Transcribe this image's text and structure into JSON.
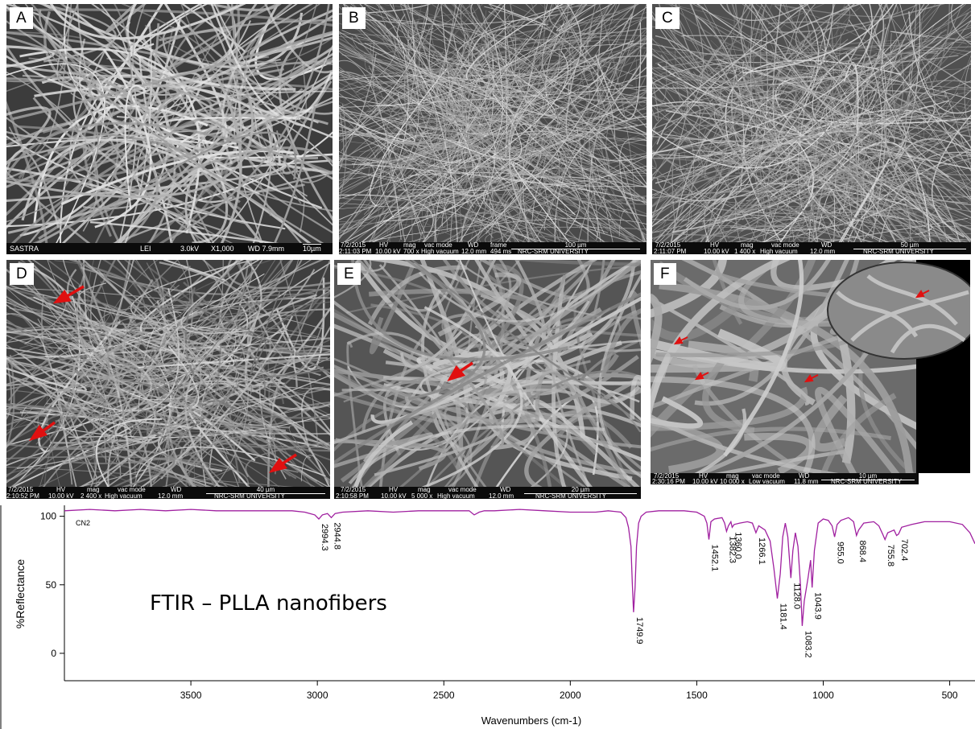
{
  "panels": {
    "a": {
      "label": "A",
      "bar": [
        "SASTRA",
        "LEI",
        "3.0kV",
        "X1,000",
        "WD 7.9mm",
        "10µm"
      ]
    },
    "b": {
      "label": "B",
      "bar": [
        "7/2/2015",
        "2:11:03 PM",
        "HV",
        "10.00 kV",
        "mag",
        "700 x",
        "vac mode",
        "High vacuum",
        "WD",
        "12.0 mm",
        "frame",
        "494 ms",
        "100 µm",
        "NRC-SRM UNIVERSITY"
      ]
    },
    "c": {
      "label": "C",
      "bar": [
        "7/2/2015",
        "2:11:07 PM",
        "HV",
        "10.00 kV",
        "mag",
        "1 400 x",
        "vac mode",
        "High vacuum",
        "WD",
        "12.0 mm",
        "50 µm",
        "NRC-SRM UNIVERSITY"
      ]
    },
    "d": {
      "label": "D",
      "bar": [
        "7/2/2015",
        "2:10:52 PM",
        "HV",
        "10.00 kV",
        "mag",
        "2 400 x",
        "vac mode",
        "High vacuum",
        "WD",
        "12.0 mm",
        "40 µm",
        "NRC-SRM UNIVERSITY"
      ]
    },
    "e": {
      "label": "E",
      "bar": [
        "7/2/2015",
        "2:10:58 PM",
        "HV",
        "10.00 kV",
        "mag",
        "5 000 x",
        "vac mode",
        "High vacuum",
        "WD",
        "12.0 mm",
        "20 µm",
        "NRC-SRM UNIVERSITY"
      ]
    },
    "f": {
      "label": "F",
      "bar": [
        "7/2/2015",
        "2:30:16 PM",
        "HV",
        "10.00 kV",
        "mag",
        "10 000 x",
        "vac mode",
        "Low vacuum",
        "WD",
        "11.8 mm",
        "10 µm",
        "NRC-SRM UNIVERSITY"
      ]
    }
  },
  "chart_data": {
    "type": "line",
    "title": "FTIR – PLLA nanofibers",
    "sample_tag": "CN2",
    "xlabel": "Wavenumbers (cm-1)",
    "ylabel": "%Reflectance",
    "xlim": [
      4000,
      400
    ],
    "ylim": [
      -20,
      108
    ],
    "xticks": [
      3500,
      3000,
      2500,
      2000,
      1500,
      1000,
      500
    ],
    "yticks": [
      100,
      50,
      0
    ],
    "line_color": "#a020a0",
    "series": [
      {
        "x": [
          4000,
          3900,
          3800,
          3700,
          3600,
          3500,
          3400,
          3300,
          3200,
          3100,
          3050,
          3010,
          2994.3,
          2980,
          2960,
          2944.8,
          2930,
          2900,
          2800,
          2700,
          2600,
          2500,
          2400,
          2380,
          2360,
          2340,
          2300,
          2200,
          2100,
          2000,
          1900,
          1850,
          1800,
          1780,
          1770,
          1760,
          1755,
          1749.9,
          1744,
          1738,
          1730,
          1720,
          1700,
          1650,
          1600,
          1550,
          1500,
          1470,
          1460,
          1452.1,
          1444,
          1430,
          1400,
          1390,
          1382.3,
          1375,
          1365,
          1360.0,
          1352,
          1330,
          1300,
          1280,
          1266.1,
          1255,
          1230,
          1210,
          1195,
          1181.4,
          1170,
          1160,
          1150,
          1140,
          1128.0,
          1120,
          1110,
          1100,
          1090,
          1083.2,
          1075,
          1060,
          1050,
          1043.9,
          1035,
          1020,
          1000,
          980,
          965,
          955.0,
          945,
          930,
          900,
          880,
          868.4,
          860,
          840,
          800,
          780,
          765,
          755.8,
          745,
          720,
          710,
          702.4,
          690,
          650,
          600,
          550,
          500,
          450,
          420,
          400
        ],
        "y": [
          104,
          105,
          104,
          105,
          104,
          105,
          104,
          104,
          104,
          104,
          103,
          101,
          98,
          101,
          102,
          99,
          102,
          103,
          104,
          103,
          104,
          104,
          104,
          101,
          103,
          104,
          104,
          105,
          104,
          103,
          103,
          104,
          103,
          99,
          92,
          78,
          52,
          30,
          48,
          78,
          95,
          100,
          103,
          104,
          104,
          104,
          103,
          100,
          95,
          83,
          96,
          98,
          99,
          95,
          89,
          93,
          96,
          92,
          94,
          95,
          96,
          95,
          88,
          93,
          90,
          82,
          62,
          40,
          58,
          85,
          95,
          85,
          55,
          75,
          88,
          78,
          50,
          20,
          38,
          55,
          68,
          48,
          75,
          95,
          98,
          97,
          93,
          85,
          94,
          97,
          99,
          96,
          86,
          90,
          95,
          96,
          93,
          87,
          83,
          88,
          90,
          86,
          87,
          92,
          94,
          96,
          96,
          96,
          94,
          88,
          80
        ]
      }
    ],
    "peak_labels": [
      {
        "x": 2994.3,
        "text": "2994.3"
      },
      {
        "x": 2944.8,
        "text": "2944.8"
      },
      {
        "x": 1749.9,
        "text": "1749.9"
      },
      {
        "x": 1452.1,
        "text": "1452.1"
      },
      {
        "x": 1382.3,
        "text": "1382.3"
      },
      {
        "x": 1360.0,
        "text": "1360.0"
      },
      {
        "x": 1266.1,
        "text": "1266.1"
      },
      {
        "x": 1181.4,
        "text": "1181.4"
      },
      {
        "x": 1128.0,
        "text": "1128.0"
      },
      {
        "x": 1083.2,
        "text": "1083.2"
      },
      {
        "x": 1043.9,
        "text": "1043.9"
      },
      {
        "x": 955.0,
        "text": "955.0"
      },
      {
        "x": 868.4,
        "text": "868.4"
      },
      {
        "x": 755.8,
        "text": "755.8"
      },
      {
        "x": 702.4,
        "text": "702.4"
      }
    ],
    "grid": false
  }
}
